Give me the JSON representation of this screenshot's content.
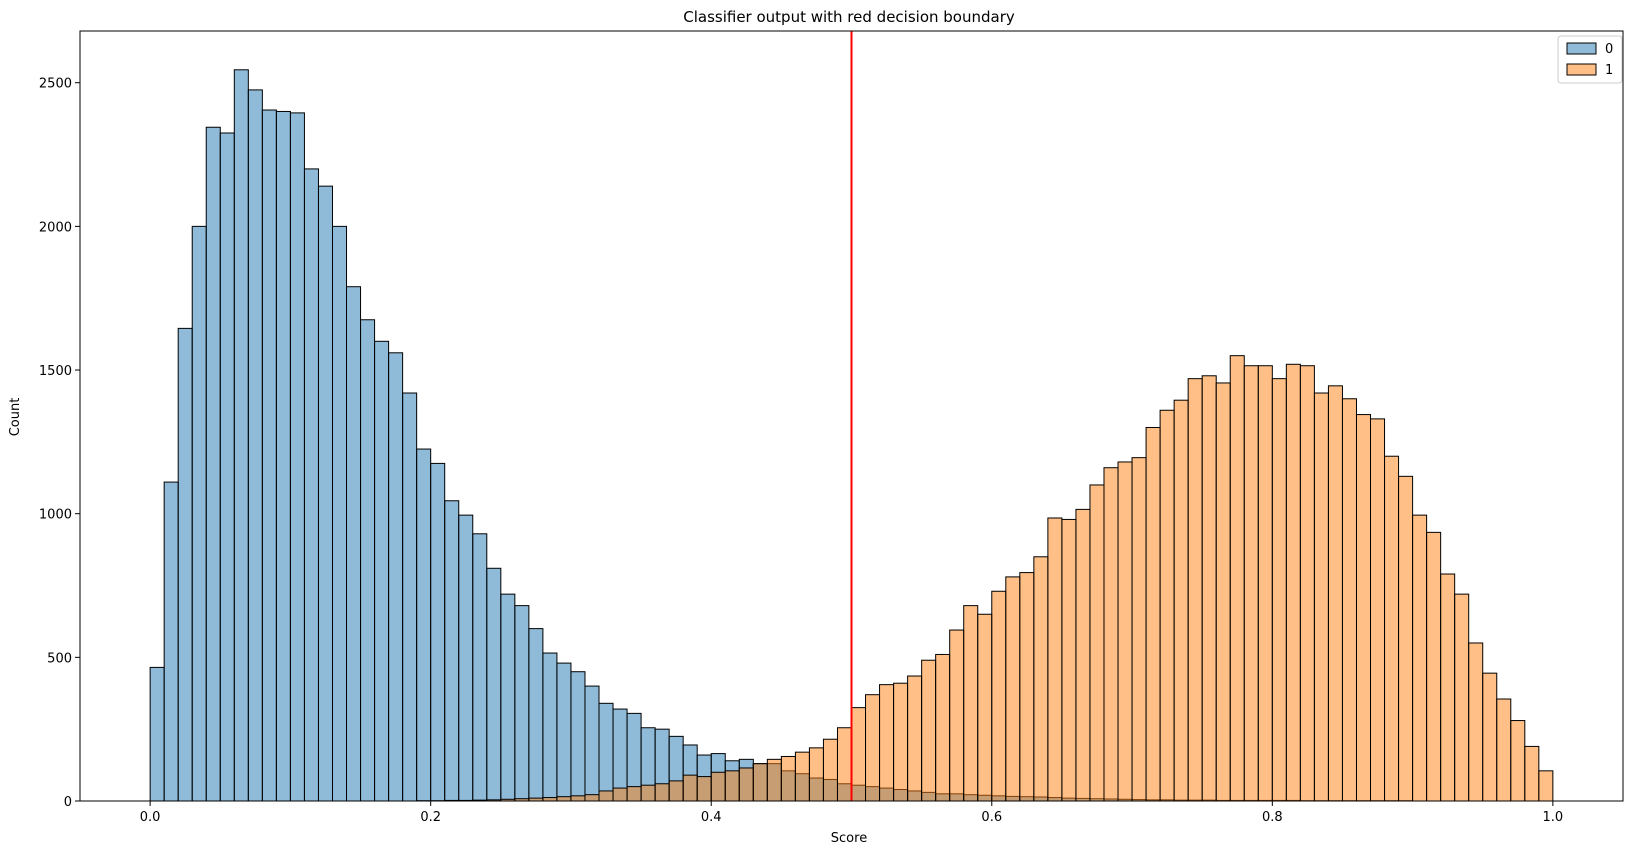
{
  "chart_data": {
    "type": "histogram",
    "title": "Classifier output with red decision boundary",
    "xlabel": "Score",
    "ylabel": "Count",
    "xlim": [
      -0.05,
      1.05
    ],
    "ylim": [
      0,
      2680
    ],
    "bin_width": 0.01,
    "bin_starts": [
      0.0,
      0.01,
      0.02,
      0.03,
      0.04,
      0.05,
      0.06,
      0.07,
      0.08,
      0.09,
      0.1,
      0.11,
      0.12,
      0.13,
      0.14,
      0.15,
      0.16,
      0.17,
      0.18,
      0.19,
      0.2,
      0.21,
      0.22,
      0.23,
      0.24,
      0.25,
      0.26,
      0.27,
      0.28,
      0.29,
      0.3,
      0.31,
      0.32,
      0.33,
      0.34,
      0.35,
      0.36,
      0.37,
      0.38,
      0.39,
      0.4,
      0.41,
      0.42,
      0.43,
      0.44,
      0.45,
      0.46,
      0.47,
      0.48,
      0.49,
      0.5,
      0.51,
      0.52,
      0.53,
      0.54,
      0.55,
      0.56,
      0.57,
      0.58,
      0.59,
      0.6,
      0.61,
      0.62,
      0.63,
      0.64,
      0.65,
      0.66,
      0.67,
      0.68,
      0.69,
      0.7,
      0.71,
      0.72,
      0.73,
      0.74,
      0.75,
      0.76,
      0.77,
      0.78,
      0.79,
      0.8,
      0.81,
      0.82,
      0.83,
      0.84,
      0.85,
      0.86,
      0.87,
      0.88,
      0.89,
      0.9,
      0.91,
      0.92,
      0.93,
      0.94,
      0.95,
      0.96,
      0.97,
      0.98,
      0.99
    ],
    "xticks": [
      0.0,
      0.2,
      0.4,
      0.6,
      0.8,
      1.0
    ],
    "xtick_labels": [
      "0.0",
      "0.2",
      "0.4",
      "0.6",
      "0.8",
      "1.0"
    ],
    "yticks": [
      0,
      500,
      1000,
      1500,
      2000,
      2500
    ],
    "ytick_labels": [
      "0",
      "500",
      "1000",
      "1500",
      "2000",
      "2500"
    ],
    "decision_boundary": 0.5,
    "decision_boundary_color": "#ff0000",
    "legend": {
      "placement": "top-right",
      "entries": [
        "0",
        "1"
      ]
    },
    "grid": false,
    "series": [
      {
        "name": "0",
        "color": "#1f77b4",
        "values": [
          465,
          1110,
          1645,
          2000,
          2345,
          2325,
          2545,
          2475,
          2405,
          2400,
          2395,
          2200,
          2140,
          2000,
          1790,
          1675,
          1600,
          1560,
          1420,
          1225,
          1175,
          1045,
          995,
          930,
          810,
          720,
          680,
          600,
          515,
          480,
          450,
          400,
          340,
          320,
          305,
          255,
          250,
          225,
          195,
          160,
          165,
          140,
          145,
          130,
          130,
          105,
          95,
          80,
          75,
          60,
          55,
          50,
          45,
          40,
          35,
          30,
          25,
          25,
          22,
          20,
          18,
          16,
          15,
          14,
          12,
          10,
          9,
          8,
          7,
          6,
          5,
          4,
          4,
          3,
          3,
          3,
          2,
          2,
          2,
          2,
          2,
          2,
          1,
          1,
          1,
          1,
          1,
          1,
          1,
          1,
          0,
          0,
          0,
          0,
          0,
          0,
          0,
          0,
          0,
          0
        ]
      },
      {
        "name": "1",
        "color": "#ff7f0e",
        "values": [
          0,
          0,
          0,
          0,
          0,
          0,
          0,
          0,
          0,
          0,
          0,
          0,
          0,
          0,
          0,
          0,
          0,
          0,
          0,
          1,
          1,
          2,
          2,
          3,
          4,
          6,
          8,
          10,
          12,
          15,
          18,
          22,
          35,
          45,
          50,
          55,
          60,
          70,
          90,
          85,
          100,
          105,
          115,
          130,
          145,
          155,
          170,
          185,
          215,
          255,
          325,
          370,
          405,
          410,
          435,
          490,
          510,
          595,
          680,
          650,
          730,
          780,
          795,
          850,
          985,
          980,
          1015,
          1100,
          1160,
          1180,
          1195,
          1300,
          1360,
          1395,
          1470,
          1480,
          1455,
          1550,
          1515,
          1515,
          1470,
          1520,
          1515,
          1420,
          1445,
          1400,
          1345,
          1330,
          1200,
          1130,
          995,
          935,
          790,
          720,
          550,
          445,
          355,
          280,
          190,
          105
        ]
      }
    ]
  }
}
